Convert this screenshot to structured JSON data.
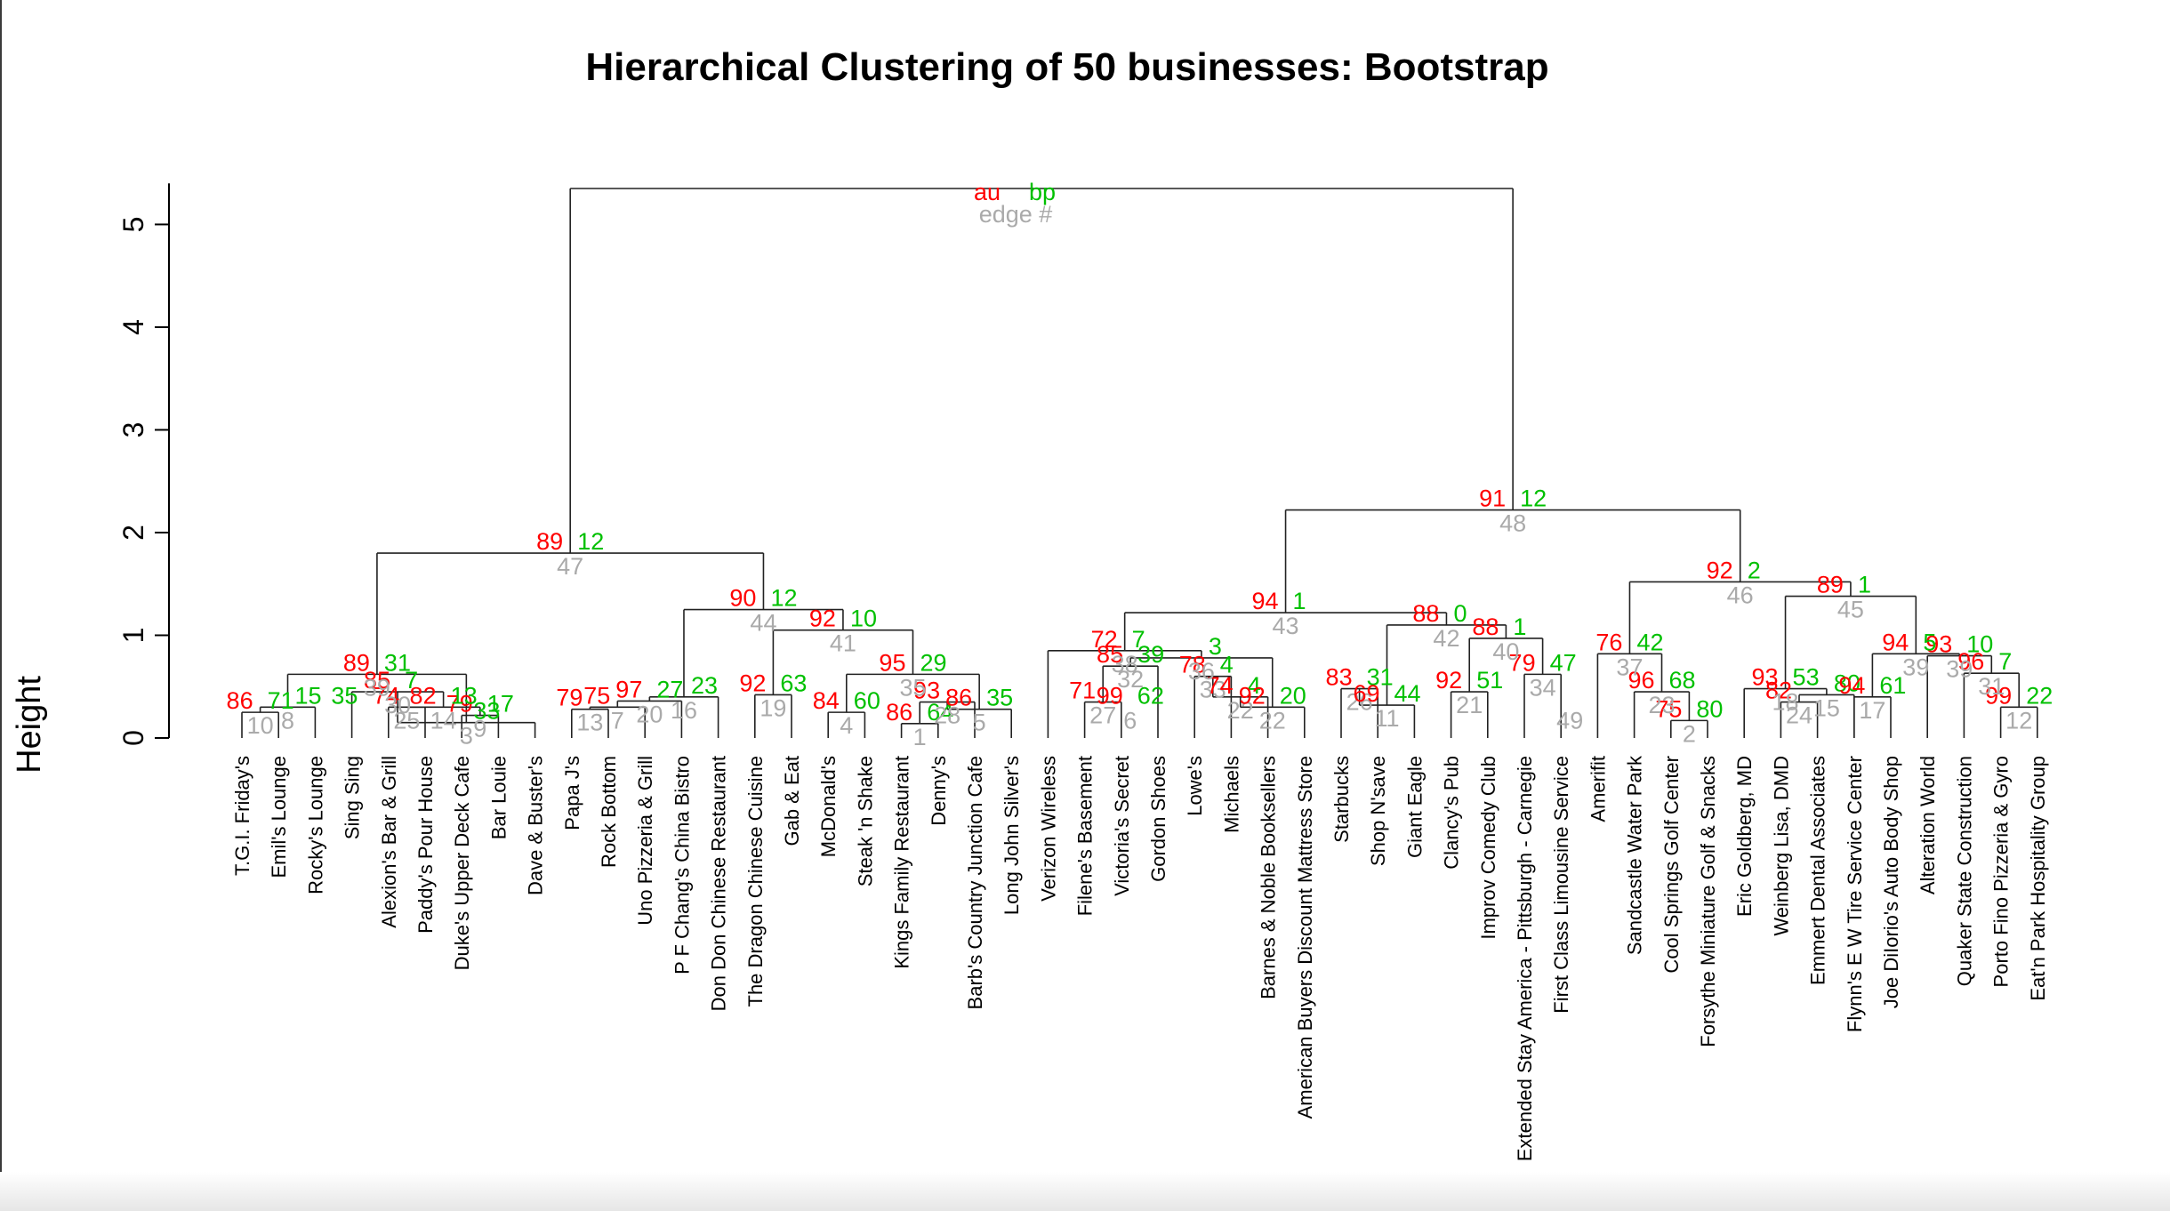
{
  "chart_data": {
    "type": "dendrogram",
    "title": "Hierarchical Clustering of 50 businesses: Bootstrap",
    "ylabel": "Height",
    "yticks": [
      0,
      1,
      2,
      3,
      4,
      5
    ],
    "ylim": [
      0,
      5.4
    ],
    "legend": {
      "au": "au",
      "bp": "bp",
      "edge": "edge #"
    },
    "colors": {
      "au": "#ff0000",
      "bp": "#00c000",
      "edge": "#aaaaaa",
      "lines": "#000000"
    },
    "leaves": [
      "T.G.I. Friday's",
      "Emil's Lounge",
      "Rocky's Lounge",
      "Sing Sing",
      "Alexion's Bar & Grill",
      "Paddy's Pour House",
      "Duke's Upper Deck Cafe",
      "Bar Louie",
      "Dave & Buster's",
      "Papa J's",
      "Rock Bottom",
      "Uno Pizzeria & Grill",
      "P F Chang's China Bistro",
      "Don Don Chinese Restaurant",
      "The Dragon Chinese Cuisine",
      "Gab & Eat",
      "McDonald's",
      "Steak 'n Shake",
      "Kings Family Restaurant",
      "Denny's",
      "Barb's Country Junction Cafe",
      "Long John Silver's",
      "Verizon Wireless",
      "Filene's Basement",
      "Victoria's Secret",
      "Gordon Shoes",
      "Lowe's",
      "Michaels",
      "Barnes & Noble Booksellers",
      "American Buyers Discount Mattress Store",
      "Starbucks",
      "Shop N'save",
      "Giant Eagle",
      "Clancy's Pub",
      "Improv Comedy Club",
      "Extended Stay America - Pittsburgh - Carnegie",
      "First Class Limousine Service",
      "Amerifit",
      "Sandcastle Water Park",
      "Cool Springs Golf Center",
      "Forsythe Miniature Golf & Snacks",
      "Eric Goldberg, MD",
      "Weinberg Lisa, DMD",
      "Emmert Dental Associates",
      "Flynn's E W Tire Service Center",
      "Joe DiIorio's Auto Body Shop",
      "Alteration World",
      "Quaker State Construction",
      "Porto Fino Pizzeria & Gyro",
      "Eat'n Park Hospitality Group"
    ],
    "merges": [
      {
        "a": "L1",
        "b": "L2",
        "h": 0.25,
        "au": "86",
        "bp": "71",
        "edge": "10"
      },
      {
        "a": "N1",
        "b": "L3",
        "h": 0.3,
        "au": "",
        "bp": "15",
        "edge": "8"
      },
      {
        "a": "L5",
        "b": "L6",
        "h": 0.3,
        "au": "74",
        "bp": "",
        "edge": "25"
      },
      {
        "a": "L7",
        "b": "L8",
        "h": 0.22,
        "au": "79",
        "bp": "17",
        "edge": "9"
      },
      {
        "a": "N3",
        "b": "N4",
        "h": 0.3,
        "au": "82",
        "bp": "13",
        "edge": "14"
      },
      {
        "a": "L4",
        "b": "N5",
        "h": 0.45,
        "au": "85",
        "bp": "7",
        "edge": "30"
      },
      {
        "a": "N6",
        "b": "L9",
        "h": 0.15,
        "au": "",
        "bp": "33",
        "edge": "3"
      },
      {
        "a": "N2",
        "b": "N7",
        "h": 0.62,
        "au": "89",
        "bp": "31",
        "edge": "39"
      },
      {
        "a": "L10",
        "b": "L11",
        "h": 0.28,
        "au": "79",
        "bp": "",
        "edge": "13"
      },
      {
        "a": "N9",
        "b": "L12",
        "h": 0.3,
        "au": "75",
        "bp": "",
        "edge": "7"
      },
      {
        "a": "N10",
        "b": "L13",
        "h": 0.36,
        "au": "97",
        "bp": "27",
        "edge": "20"
      },
      {
        "a": "N11",
        "b": "L14",
        "h": 0.4,
        "au": "",
        "bp": "23",
        "edge": "16"
      },
      {
        "a": "L15",
        "b": "L16",
        "h": 0.42,
        "au": "92",
        "bp": "63",
        "edge": "19"
      },
      {
        "a": "L17",
        "b": "L18",
        "h": 0.25,
        "au": "84",
        "bp": "60",
        "edge": "4"
      },
      {
        "a": "L19",
        "b": "L20",
        "h": 0.14,
        "au": "86",
        "bp": "64",
        "edge": "1"
      },
      {
        "a": "N15",
        "b": "L21",
        "h": 0.35,
        "au": "93",
        "bp": "",
        "edge": "28"
      },
      {
        "a": "N16",
        "b": "L22",
        "h": 0.28,
        "au": "86",
        "bp": "35",
        "edge": "5"
      },
      {
        "a": "N14",
        "b": "N17",
        "h": 0.62,
        "au": "95",
        "bp": "29",
        "edge": "35"
      },
      {
        "a": "N13",
        "b": "N18",
        "h": 1.05,
        "au": "92",
        "bp": "10",
        "edge": "41"
      },
      {
        "a": "N12",
        "b": "N19",
        "h": 1.25,
        "au": "90",
        "bp": "12",
        "edge": "44"
      },
      {
        "a": "N8",
        "b": "N20",
        "h": 1.8,
        "au": "89",
        "bp": "12",
        "edge": "47"
      },
      {
        "a": "L24",
        "b": "L25",
        "h": 0.35,
        "au": "71",
        "bp": "",
        "edge": "27"
      },
      {
        "a": "N22",
        "b": "L26",
        "h": 0.7,
        "au": "85",
        "bp": "39",
        "edge": "32"
      },
      {
        "a": "L27",
        "b": "L28",
        "h": 0.6,
        "au": "78",
        "bp": "4",
        "edge": "33"
      },
      {
        "a": "N24",
        "b": "L29",
        "h": 0.4,
        "au": "74",
        "bp": "4",
        "edge": "22"
      },
      {
        "a": "N25",
        "b": "L30",
        "h": 0.3,
        "au": "92",
        "bp": "20",
        "edge": "22"
      },
      {
        "a": "N23",
        "b": "N26",
        "h": 0.78,
        "au": "",
        "bp": "3",
        "edge": "36"
      },
      {
        "a": "L23",
        "b": "N27",
        "h": 0.85,
        "au": "72",
        "bp": "7",
        "edge": "38"
      },
      {
        "a": "L31",
        "b": "L32",
        "h": 0.48,
        "au": "83",
        "bp": "31",
        "edge": "26"
      },
      {
        "a": "N29",
        "b": "L33",
        "h": 0.32,
        "au": "69",
        "bp": "44",
        "edge": "11"
      },
      {
        "a": "L34",
        "b": "L35",
        "h": 0.45,
        "au": "92",
        "bp": "51",
        "edge": "21"
      },
      {
        "a": "L36",
        "b": "L37",
        "h": 0.62,
        "au": "79",
        "bp": "47",
        "edge": "34"
      },
      {
        "a": "N31",
        "b": "N32",
        "h": 0.97,
        "au": "88",
        "bp": "1",
        "edge": "40"
      },
      {
        "a": "N30",
        "b": "N33",
        "h": 1.1,
        "au": "88",
        "bp": "0",
        "edge": "42"
      },
      {
        "a": "N28",
        "b": "N34",
        "h": 1.22,
        "au": "94",
        "bp": "1",
        "edge": "43"
      },
      {
        "a": "L40",
        "b": "L41",
        "h": 0.17,
        "au": "75",
        "bp": "80",
        "edge": "2"
      },
      {
        "a": "L39",
        "b": "N36",
        "h": 0.45,
        "au": "96",
        "bp": "68",
        "edge": "23"
      },
      {
        "a": "L38",
        "b": "N37",
        "h": 0.82,
        "au": "76",
        "bp": "42",
        "edge": "37"
      },
      {
        "a": "L43",
        "b": "L44",
        "h": 0.35,
        "au": "82",
        "bp": "",
        "edge": "24"
      },
      {
        "a": "N39",
        "b": "L45",
        "h": 0.42,
        "au": "",
        "bp": "80",
        "edge": "15"
      },
      {
        "a": "L42",
        "b": "N40",
        "h": 0.48,
        "au": "93",
        "bp": "53",
        "edge": "18"
      },
      {
        "a": "L45b",
        "b": "L46",
        "h": 0.4,
        "au": "94",
        "bp": "61",
        "edge": "17"
      },
      {
        "a": "L49",
        "b": "L50",
        "h": 0.3,
        "au": "99",
        "bp": "22",
        "edge": "12"
      },
      {
        "a": "L48",
        "b": "N43",
        "h": 0.63,
        "au": "96",
        "bp": "7",
        "edge": "31"
      },
      {
        "a": "L47",
        "b": "N44",
        "h": 0.8,
        "au": "93",
        "bp": "10",
        "edge": "39"
      },
      {
        "a": "N42",
        "b": "N45",
        "h": 0.82,
        "au": "94",
        "bp": "5",
        "edge": "39"
      },
      {
        "a": "N41",
        "b": "N46",
        "h": 1.38,
        "au": "89",
        "bp": "1",
        "edge": "45"
      },
      {
        "a": "N38",
        "b": "N47",
        "h": 1.52,
        "au": "92",
        "bp": "2",
        "edge": "46"
      },
      {
        "a": "N35",
        "b": "N48",
        "h": 2.22,
        "au": "91",
        "bp": "12",
        "edge": "48"
      },
      {
        "a": "N21",
        "b": "N49",
        "h": 5.35,
        "au": "",
        "bp": "",
        "edge": ""
      }
    ],
    "extra_labels": [
      {
        "near": 2,
        "au": "",
        "bp": "35",
        "edge": ""
      },
      {
        "near": 24,
        "au": "99",
        "bp": "62",
        "edge": "6"
      },
      {
        "near": 36,
        "au": "",
        "bp": "",
        "edge": "49"
      }
    ]
  }
}
